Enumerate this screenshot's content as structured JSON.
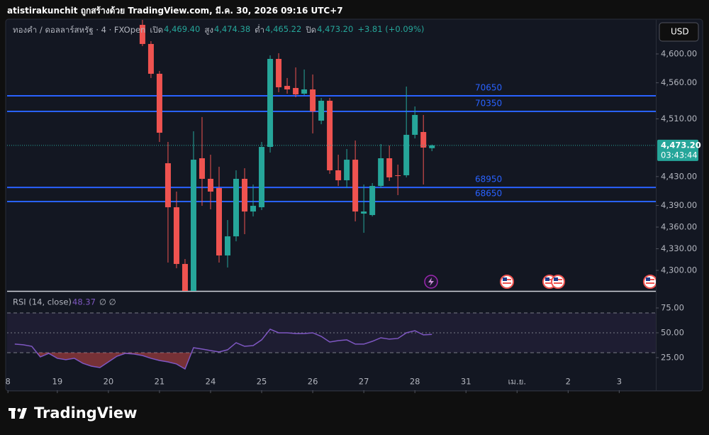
{
  "header": "atistirakunchit ถูกสร้างด้วย TradingView.com, มี.ค. 30, 2026 09:16 UTC+7",
  "brand": "TradingView",
  "chart_data": {
    "type": "candlestick",
    "title": "ทองคำ / ดอลลาร์สหรัฐ · 4 · FXOpen",
    "ohlc_legend": [
      {
        "label": "เปิด",
        "value": "4,469.40"
      },
      {
        "label": "สูง",
        "value": "4,474.38"
      },
      {
        "label": "ต่ำ",
        "value": "4,465.22"
      },
      {
        "label": "ปิด",
        "value": "4,473.20"
      }
    ],
    "change": "+3.81 (+0.09%)",
    "currency": "USD",
    "up_color": "#26a69a",
    "down_color": "#ef5350",
    "x": [
      6,
      7,
      8,
      9,
      10,
      11,
      12,
      13,
      14,
      15,
      16,
      17,
      18,
      19,
      20,
      21,
      22,
      23,
      24,
      25,
      26,
      27,
      28,
      29,
      30,
      31,
      32,
      33,
      34,
      35,
      36,
      37,
      38,
      39,
      40
    ],
    "open": [
      4640.3,
      4613.8,
      4572.5,
      4448.5,
      4387.5,
      4308.9,
      4268,
      4455.4,
      4426.9,
      4414.1,
      4320.7,
      4347.2,
      4426.9,
      4381.6,
      4387.5,
      4471.1,
      4593.1,
      4555.7,
      4552.8,
      4544.9,
      4550.8,
      4507.5,
      4535.1,
      4438.7,
      4424.9,
      4453.4,
      4378.7,
      4376.7,
      4417,
      4455.4,
      4431.8,
      4431.8,
      4487.9,
      4491.8,
      4469.4
    ],
    "high": [
      4650.2,
      4617.7,
      4576.4,
      4478,
      4409.2,
      4315.7,
      4492.8,
      4512.5,
      4460.3,
      4443.6,
      4369.8,
      4438.7,
      4441.6,
      4419,
      4478,
      4598,
      4601,
      4566.6,
      4581.3,
      4578.4,
      4571.5,
      4539,
      4539,
      4460.3,
      4468.2,
      4480,
      4419,
      4421,
      4475.1,
      4473.1,
      4446.6,
      4554.8,
      4527.2,
      4515.4,
      4474.38
    ],
    "low": [
      4610.8,
      4566.6,
      4478,
      4310.8,
      4303,
      4265,
      4265,
      4389.5,
      4384.6,
      4310.8,
      4304,
      4340.3,
      4350.2,
      4374.8,
      4383.6,
      4463.3,
      4546.9,
      4544.9,
      4540,
      4542.9,
      4489.8,
      4502.6,
      4433.8,
      4417,
      4414.1,
      4367.9,
      4352.1,
      4374.8,
      4414.1,
      4423.9,
      4404.3,
      4428.9,
      4482.9,
      4419,
      4465.22
    ],
    "close": [
      4613.8,
      4572.5,
      4490.8,
      4387.5,
      4308.9,
      4268,
      4453.4,
      4426.9,
      4409.2,
      4320.7,
      4347.2,
      4426.9,
      4381.6,
      4389.5,
      4471.1,
      4593.1,
      4553.8,
      4550.8,
      4543.9,
      4550.8,
      4520.3,
      4535.1,
      4438.7,
      4424.9,
      4453.4,
      4381.6,
      4381.6,
      4417,
      4455.4,
      4428.9,
      4430.8,
      4487.9,
      4515.4,
      4470.2,
      4473.2
    ],
    "xlim": [
      -9.9,
      66.3
    ],
    "xticks": [
      {
        "value": -9.8,
        "label": "8"
      },
      {
        "value": -4,
        "label": "19"
      },
      {
        "value": 2,
        "label": "20"
      },
      {
        "value": 8,
        "label": "21"
      },
      {
        "value": 14,
        "label": "24"
      },
      {
        "value": 20,
        "label": "25"
      },
      {
        "value": 26,
        "label": "26"
      },
      {
        "value": 32,
        "label": "27"
      },
      {
        "value": 38,
        "label": "28"
      },
      {
        "value": 44,
        "label": "31"
      },
      {
        "value": 50,
        "label": "เม.ย."
      },
      {
        "value": 56,
        "label": "2"
      },
      {
        "value": 62,
        "label": "3"
      }
    ],
    "ylim": [
      4271.5,
      4647.2
    ],
    "yticks": [
      {
        "value": 4600,
        "label": "4,600.00"
      },
      {
        "value": 4560,
        "label": "4,560.00"
      },
      {
        "value": 4510,
        "label": "4,510.00"
      },
      {
        "value": 4430,
        "label": "4,430.00"
      },
      {
        "value": 4390,
        "label": "4,390.00"
      },
      {
        "value": 4360,
        "label": "4,360.00"
      },
      {
        "value": 4330,
        "label": "4,330.00"
      },
      {
        "value": 4300,
        "label": "4,300.00"
      }
    ],
    "last_price": {
      "value": 4473.2,
      "label": "4,473.20"
    },
    "countdown": "03:43:44",
    "hline_color": "#2962ff",
    "hlines": [
      {
        "value": 4542,
        "label": "70650"
      },
      {
        "value": 4520.3,
        "label": "70350"
      },
      {
        "value": 4415,
        "label": "68950"
      },
      {
        "value": 4395.4,
        "label": "68650"
      }
    ],
    "rsi": {
      "title": "RSI (14, close)",
      "extra": "∅ ∅",
      "color": "#7e57c2",
      "x": [
        -9,
        -8,
        -7,
        -6,
        -5,
        -4,
        -3,
        -2,
        -1,
        0,
        1,
        2,
        3,
        4,
        5,
        6,
        7,
        8,
        9,
        10,
        11,
        12,
        13,
        14,
        15,
        16,
        17,
        18,
        19,
        20,
        21,
        22,
        23,
        24,
        25,
        26,
        27,
        28,
        29,
        30,
        31,
        32,
        33,
        34,
        35,
        36,
        37,
        38,
        39,
        40
      ],
      "values": [
        38.6,
        37.9,
        36.4,
        25.7,
        29.3,
        24.3,
        22.9,
        24.3,
        19.3,
        16.4,
        15,
        20.7,
        26.4,
        29.3,
        28.6,
        27.1,
        24.3,
        22.1,
        20.7,
        18.6,
        13.6,
        35,
        33.6,
        32.1,
        30.7,
        32.9,
        40,
        36.4,
        37.1,
        42.9,
        53.6,
        50,
        50,
        49.3,
        49.3,
        50,
        46.4,
        40.7,
        42.1,
        42.9,
        38.6,
        38.6,
        41.4,
        45,
        43.6,
        44.3,
        50,
        52.1,
        47.9,
        48.37
      ],
      "ylim": [
        6.4,
        90.7
      ],
      "yticks": [
        {
          "value": 75,
          "label": "75.00"
        },
        {
          "value": 50,
          "label": "50.00"
        },
        {
          "value": 25,
          "label": "25.00"
        }
      ],
      "levels": [
        70,
        50,
        30
      ]
    }
  }
}
